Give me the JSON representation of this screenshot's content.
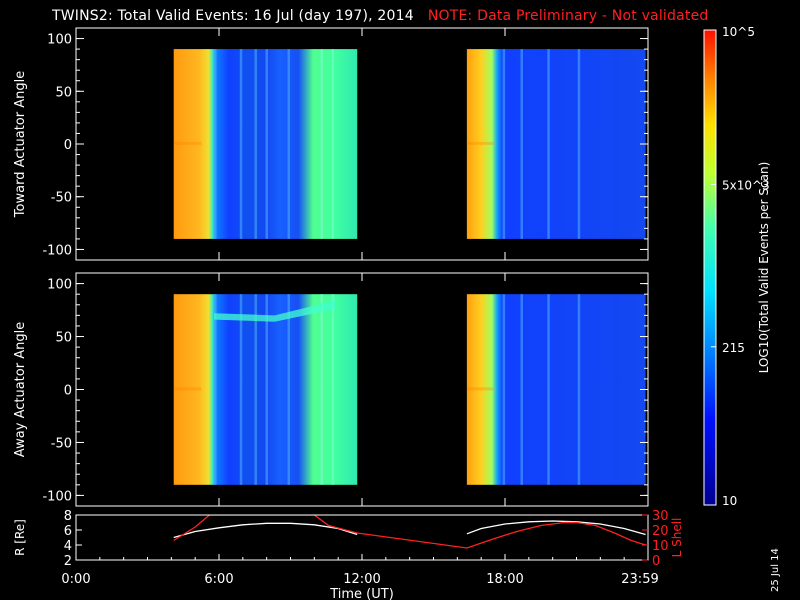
{
  "header": {
    "title": "TWINS2: Total Valid Events: 16 Jul (day 197), 2014",
    "note": "NOTE: Data Preliminary - Not validated"
  },
  "date_stamp": "25 Jul 14",
  "colors": {
    "background": "#000000",
    "axis": "#ffffff",
    "note_red": "#ff2020",
    "ephem_r": "#ffffff",
    "ephem_lshell": "#ff2020"
  },
  "chart_data": [
    {
      "type": "heatmap",
      "title": "",
      "ylabel": "Toward Actuator Angle",
      "xlim": [
        0,
        24
      ],
      "ylim": [
        -110,
        110
      ],
      "yticks": [
        "100",
        "50",
        "0",
        "-50",
        "-100"
      ],
      "data_window_y": [
        -90,
        90
      ],
      "data_coverage_hours": [
        [
          4.1,
          11.8
        ],
        [
          16.4,
          23.9
        ]
      ],
      "colorscale": "rainbow",
      "log_scale": true
    },
    {
      "type": "heatmap",
      "title": "",
      "ylabel": "Away Actuator Angle",
      "xlim": [
        0,
        24
      ],
      "ylim": [
        -110,
        110
      ],
      "yticks": [
        "100",
        "50",
        "0",
        "-50",
        "-100"
      ],
      "data_window_y": [
        -90,
        90
      ],
      "data_coverage_hours": [
        [
          4.1,
          11.8
        ],
        [
          16.4,
          23.9
        ]
      ],
      "colorscale": "rainbow",
      "log_scale": true
    },
    {
      "type": "line",
      "xlabel": "Time (UT)",
      "xlim": [
        0,
        24
      ],
      "xticks": [
        "0:00",
        "6:00",
        "12:00",
        "18:00",
        "23:59"
      ],
      "ylabel_left": "R [Re]",
      "ylim_left": [
        2,
        8
      ],
      "yticks_left": [
        "8",
        "6",
        "4",
        "2"
      ],
      "ylabel_right": "L Shell",
      "ylim_right": [
        0,
        30
      ],
      "yticks_right": [
        "30",
        "20",
        "10",
        "0"
      ],
      "series": [
        {
          "name": "R [Re]",
          "axis": "left",
          "x": [
            4.1,
            5.0,
            6.0,
            7.0,
            8.0,
            9.0,
            10.0,
            11.0,
            11.8,
            16.4,
            17.0,
            18.0,
            19.0,
            20.0,
            21.0,
            22.0,
            23.0,
            23.9
          ],
          "y": [
            5.0,
            5.8,
            6.3,
            6.7,
            6.9,
            6.9,
            6.7,
            6.2,
            5.4,
            5.5,
            6.2,
            6.8,
            7.1,
            7.2,
            7.1,
            6.8,
            6.2,
            5.4
          ]
        },
        {
          "name": "L Shell",
          "axis": "right",
          "x": [
            4.1,
            5.0,
            5.6,
            10.0,
            10.6,
            11.8,
            16.4,
            17.5,
            18.5,
            19.5,
            20.5,
            21.0,
            21.8,
            22.6,
            23.3,
            23.9
          ],
          "y": [
            13,
            22,
            30,
            30,
            23,
            18,
            8,
            14,
            19,
            23,
            25,
            25,
            23,
            18,
            13,
            10
          ]
        }
      ]
    }
  ],
  "colorbar": {
    "label": "LOG10(Total Valid Events per Scan)",
    "ticks": [
      "10^5",
      "5x10^3",
      "215",
      "10"
    ],
    "tick_values": [
      100000,
      5000,
      215,
      10
    ]
  }
}
